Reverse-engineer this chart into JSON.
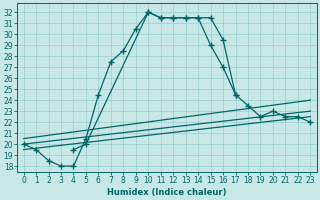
{
  "xlabel": "Humidex (Indice chaleur)",
  "bg_color": "#c8e8e8",
  "grid_color": "#99cccc",
  "line_color": "#006666",
  "xlim": [
    -0.5,
    23.5
  ],
  "ylim": [
    17.5,
    32.8
  ],
  "xticks": [
    0,
    1,
    2,
    3,
    4,
    5,
    6,
    7,
    8,
    9,
    10,
    11,
    12,
    13,
    14,
    15,
    16,
    17,
    18,
    19,
    20,
    21,
    22,
    23
  ],
  "yticks": [
    18,
    19,
    20,
    21,
    22,
    23,
    24,
    25,
    26,
    27,
    28,
    29,
    30,
    31,
    32
  ],
  "curve1_x": [
    0,
    1,
    2,
    3,
    4,
    5,
    6,
    7,
    8,
    9,
    10,
    11,
    12,
    13,
    14,
    15,
    16,
    17
  ],
  "curve1_y": [
    20.0,
    19.5,
    18.5,
    18.0,
    18.0,
    20.5,
    24.5,
    27.5,
    28.5,
    30.5,
    32.0,
    31.5,
    31.5,
    31.5,
    31.5,
    29.0,
    27.0,
    24.5
  ],
  "curve2_x": [
    4,
    5,
    10,
    11,
    12,
    13,
    14,
    15,
    16,
    17,
    18,
    19,
    20,
    21,
    22,
    23
  ],
  "curve2_y": [
    19.5,
    20.0,
    32.0,
    31.5,
    31.5,
    31.5,
    31.5,
    31.5,
    29.5,
    24.5,
    23.5,
    22.5,
    23.0,
    22.5,
    22.5,
    22.0
  ],
  "line1_x": [
    0,
    23
  ],
  "line1_y": [
    19.5,
    22.5
  ],
  "line2_x": [
    0,
    23
  ],
  "line2_y": [
    20.0,
    23.0
  ],
  "line3_x": [
    0,
    23
  ],
  "line3_y": [
    20.5,
    24.0
  ]
}
